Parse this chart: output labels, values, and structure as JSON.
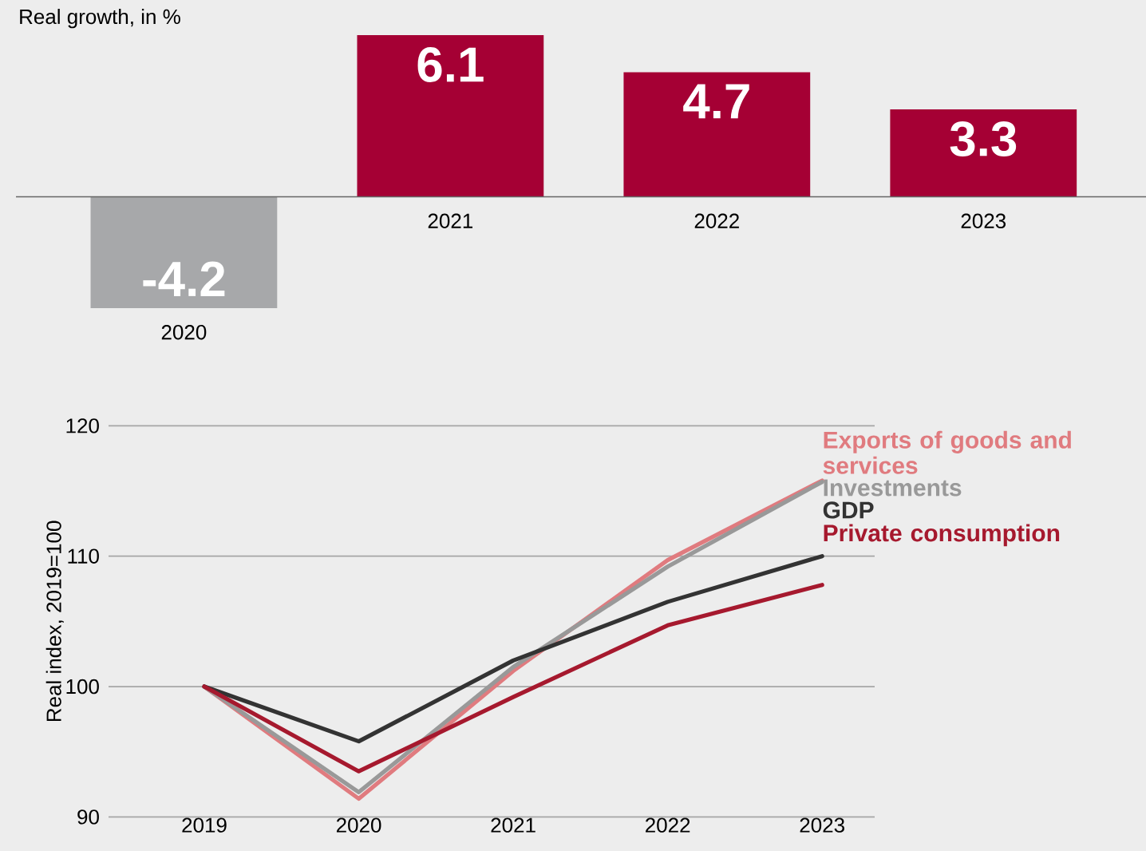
{
  "chart_data": [
    {
      "type": "bar",
      "title": "Real growth, in %",
      "categories": [
        "2020",
        "2021",
        "2022",
        "2023"
      ],
      "values": [
        -4.2,
        6.1,
        4.7,
        3.3
      ],
      "colors": [
        "#a7a8aa",
        "#a50034",
        "#a50034",
        "#a50034"
      ],
      "data_labels": true
    },
    {
      "type": "line",
      "ylabel": "Real index, 2019=100",
      "categories": [
        "2019",
        "2020",
        "2021",
        "2022",
        "2023"
      ],
      "ylim": [
        90,
        120
      ],
      "yticks": [
        90,
        100,
        110,
        120
      ],
      "grid": "y",
      "legend": "right",
      "series": [
        {
          "name": "Exports of goods and services",
          "color": "#e07b7f",
          "values": [
            100,
            91.4,
            101.2,
            109.7,
            115.8
          ]
        },
        {
          "name": "Investments",
          "color": "#999999",
          "values": [
            100,
            91.9,
            101.5,
            109.2,
            115.7
          ]
        },
        {
          "name": "GDP",
          "color": "#333333",
          "values": [
            100,
            95.8,
            102.0,
            106.5,
            110.0
          ]
        },
        {
          "name": "Private consumption",
          "color": "#a6192e",
          "values": [
            100,
            93.5,
            99.2,
            104.7,
            107.8
          ]
        }
      ]
    }
  ]
}
